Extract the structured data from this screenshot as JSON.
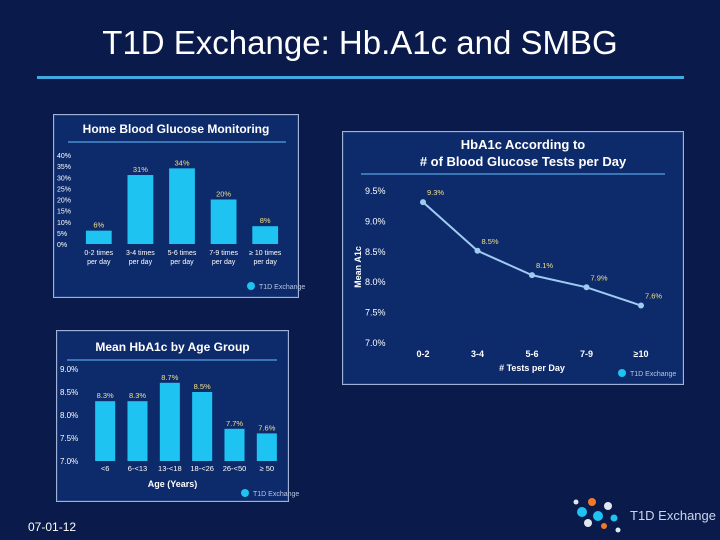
{
  "slide": {
    "title": "T1D Exchange: Hb.A1c and SMBG",
    "footer_date": "07-01-12",
    "brand": "T1D Exchange"
  },
  "colors": {
    "background": "#0a1a4a",
    "panel": "#0d2a6b",
    "bar": "#1ec3f2",
    "line": "#9ecbf2",
    "accent_rule": "#3fa9e0",
    "value_label": "#f2e08a"
  },
  "chart_data": [
    {
      "id": "smbg",
      "type": "bar",
      "title": "Home Blood Glucose Monitoring",
      "categories": [
        "0-2 times per day",
        "3-4 times per day",
        "5-6 times per day",
        "7-9 times per day",
        "≥ 10 times per day"
      ],
      "category_lines": [
        [
          "0-2 times",
          "per day"
        ],
        [
          "3-4 times",
          "per day"
        ],
        [
          "5-6 times",
          "per day"
        ],
        [
          "7-9 times",
          "per day"
        ],
        [
          "≥ 10 times",
          "per day"
        ]
      ],
      "values": [
        6,
        31,
        34,
        20,
        8
      ],
      "value_labels": [
        "6%",
        "31%",
        "34%",
        "20%",
        "8%"
      ],
      "ylim": [
        0,
        40
      ],
      "yticks": [
        "0%",
        "5%",
        "10%",
        "15%",
        "20%",
        "25%",
        "30%",
        "35%",
        "40%"
      ],
      "xlabel": "",
      "ylabel": "",
      "watermark": "T1D Exchange"
    },
    {
      "id": "a1c-by-tests",
      "type": "line",
      "title_lines": [
        "HbA1c According to",
        "# of Blood Glucose Tests per Day"
      ],
      "categories": [
        "0-2",
        "3-4",
        "5-6",
        "7-9",
        "≥10"
      ],
      "values": [
        9.3,
        8.5,
        8.1,
        7.9,
        7.6
      ],
      "value_labels": [
        "9.3%",
        "8.5%",
        "8.1%",
        "7.9%",
        "7.6%"
      ],
      "ylim": [
        7.0,
        9.5
      ],
      "yticks": [
        "7.0%",
        "7.5%",
        "8.0%",
        "8.5%",
        "9.0%",
        "9.5%"
      ],
      "xlabel": "# Tests per Day",
      "ylabel": "Mean A1c",
      "watermark": "T1D Exchange"
    },
    {
      "id": "a1c-by-age",
      "type": "bar",
      "title": "Mean HbA1c by Age Group",
      "categories": [
        "<6",
        "6-<13",
        "13-<18",
        "18-<26",
        "26-<50",
        "≥ 50"
      ],
      "values": [
        8.3,
        8.3,
        8.7,
        8.5,
        7.7,
        7.6
      ],
      "value_labels": [
        "8.3%",
        "8.3%",
        "8.7%",
        "8.5%",
        "7.7%",
        "7.6%"
      ],
      "ylim": [
        7.0,
        9.0
      ],
      "yticks": [
        "7.0%",
        "7.5%",
        "8.0%",
        "8.5%",
        "9.0%"
      ],
      "xlabel": "Age (Years)",
      "ylabel": "",
      "watermark": "T1D Exchange"
    }
  ]
}
